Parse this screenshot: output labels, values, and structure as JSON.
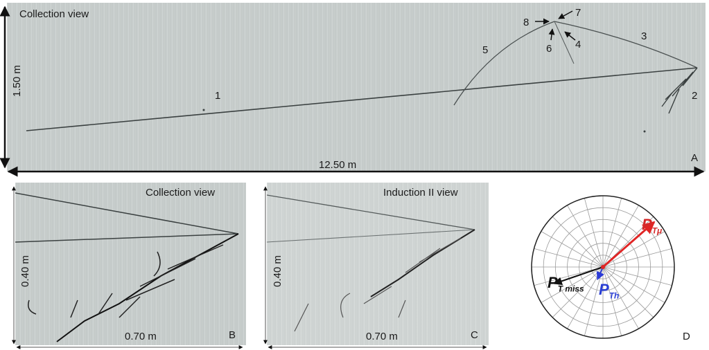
{
  "panel_a": {
    "title": "Collection view",
    "height_label": "1.50 m",
    "width_label": "12.50 m",
    "panel_letter": "A",
    "track_labels": [
      "1",
      "2",
      "3",
      "4",
      "5",
      "6",
      "7",
      "8"
    ]
  },
  "panel_b": {
    "title": "Collection  view",
    "height_label": "0.40 m",
    "width_label": "0.70 m",
    "panel_letter": "B"
  },
  "panel_c": {
    "title": "Induction II  view",
    "height_label": "0.40 m",
    "width_label": "0.70 m",
    "panel_letter": "C"
  },
  "panel_d": {
    "panel_letter": "D",
    "vector_labels": [
      {
        "main": "P",
        "sub": "Tμ",
        "color": "#d42a2a"
      },
      {
        "main": "P",
        "sub": "Th",
        "color": "#2a3fd4"
      },
      {
        "main": "P",
        "sub": "T miss",
        "color": "#111111"
      }
    ]
  },
  "colors": {
    "muon": "#e02525",
    "hadron": "#2b3bd6",
    "missing": "#111111",
    "detector": "#c9cfce"
  }
}
